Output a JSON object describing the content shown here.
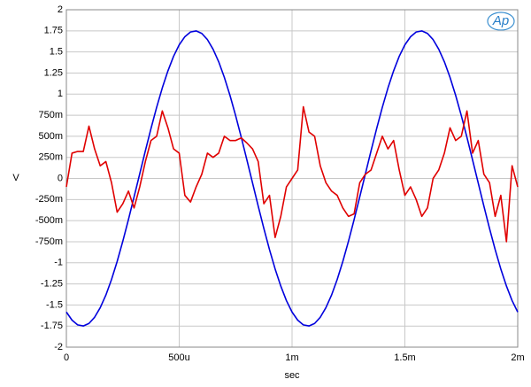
{
  "logo": "Ap",
  "chart_data": {
    "type": "line",
    "xlabel": "sec",
    "ylabel": "V",
    "x": [
      0,
      2.5e-05,
      5e-05,
      7.5e-05,
      0.0001,
      0.000125,
      0.00015,
      0.000175,
      0.0002,
      0.000225,
      0.00025,
      0.000275,
      0.0003,
      0.000325,
      0.00035,
      0.000375,
      0.0004,
      0.000425,
      0.00045,
      0.000475,
      0.0005,
      0.000525,
      0.00055,
      0.000575,
      0.0006,
      0.000625,
      0.00065,
      0.000675,
      0.0007,
      0.000725,
      0.00075,
      0.000775,
      0.0008,
      0.000825,
      0.00085,
      0.000875,
      0.0009,
      0.000925,
      0.00095,
      0.000975,
      0.001,
      0.001025,
      0.00105,
      0.001075,
      0.0011,
      0.001125,
      0.00115,
      0.001175,
      0.0012,
      0.001225,
      0.00125,
      0.001275,
      0.0013,
      0.001325,
      0.00135,
      0.001375,
      0.0014,
      0.001425,
      0.00145,
      0.001475,
      0.0015,
      0.001525,
      0.00155,
      0.001575,
      0.0016,
      0.001625,
      0.00165,
      0.001675,
      0.0017,
      0.001725,
      0.00175,
      0.001775,
      0.0018,
      0.001825,
      0.00185,
      0.001875,
      0.0019,
      0.001925,
      0.00195,
      0.001975,
      0.002
    ],
    "series": [
      {
        "color": "#0000dd",
        "values": [
          -1.584,
          -1.68,
          -1.736,
          -1.749,
          -1.719,
          -1.646,
          -1.532,
          -1.383,
          -1.198,
          -0.984,
          -0.745,
          -0.488,
          -0.219,
          0.055,
          0.328,
          0.593,
          0.843,
          1.073,
          1.275,
          1.448,
          1.584,
          1.68,
          1.736,
          1.749,
          1.719,
          1.646,
          1.532,
          1.383,
          1.198,
          0.984,
          0.745,
          0.488,
          0.219,
          -0.055,
          -0.328,
          -0.593,
          -0.843,
          -1.073,
          -1.275,
          -1.448,
          -1.584,
          -1.68,
          -1.736,
          -1.749,
          -1.719,
          -1.646,
          -1.532,
          -1.383,
          -1.198,
          -0.984,
          -0.745,
          -0.488,
          -0.219,
          0.055,
          0.328,
          0.593,
          0.843,
          1.073,
          1.275,
          1.448,
          1.584,
          1.68,
          1.736,
          1.749,
          1.719,
          1.646,
          1.532,
          1.383,
          1.198,
          0.984,
          0.745,
          0.488,
          0.219,
          -0.055,
          -0.328,
          -0.593,
          -0.843,
          -1.073,
          -1.275,
          -1.448,
          -1.584
        ]
      },
      {
        "color": "#e00000",
        "values": [
          -0.1,
          0.3,
          0.32,
          0.32,
          0.62,
          0.35,
          0.15,
          0.2,
          -0.05,
          -0.4,
          -0.3,
          -0.15,
          -0.35,
          -0.1,
          0.2,
          0.45,
          0.5,
          0.8,
          0.6,
          0.35,
          0.3,
          -0.2,
          -0.28,
          -0.1,
          0.05,
          0.3,
          0.25,
          0.3,
          0.5,
          0.45,
          0.45,
          0.48,
          0.42,
          0.35,
          0.2,
          -0.3,
          -0.2,
          -0.7,
          -0.45,
          -0.1,
          0.0,
          0.1,
          0.85,
          0.55,
          0.5,
          0.15,
          -0.05,
          -0.15,
          -0.2,
          -0.35,
          -0.45,
          -0.42,
          -0.05,
          0.05,
          0.1,
          0.3,
          0.5,
          0.35,
          0.45,
          0.1,
          -0.2,
          -0.1,
          -0.25,
          -0.45,
          -0.35,
          0.0,
          0.1,
          0.3,
          0.6,
          0.45,
          0.5,
          0.8,
          0.3,
          0.45,
          0.05,
          -0.05,
          -0.45,
          -0.2,
          -0.75,
          0.15,
          -0.1
        ]
      }
    ],
    "xlim": [
      0,
      0.002
    ],
    "ylim": [
      -2,
      2
    ],
    "xticks": [
      0,
      {
        "value": 0.0005,
        "label": "500u"
      },
      {
        "value": 0.001,
        "label": "1m"
      },
      {
        "value": 0.0015,
        "label": "1.5m"
      },
      {
        "value": 0.002,
        "label": "2m"
      }
    ],
    "yticks": [
      -2,
      -1.75,
      -1.5,
      -1.25,
      -1,
      {
        "value": -0.75,
        "label": "-750m"
      },
      {
        "value": -0.5,
        "label": "-500m"
      },
      {
        "value": -0.25,
        "label": "-250m"
      },
      0,
      {
        "value": 0.25,
        "label": "250m"
      },
      {
        "value": 0.5,
        "label": "500m"
      },
      {
        "value": 0.75,
        "label": "750m"
      },
      1,
      1.25,
      1.5,
      1.75,
      2
    ],
    "grid": true
  }
}
